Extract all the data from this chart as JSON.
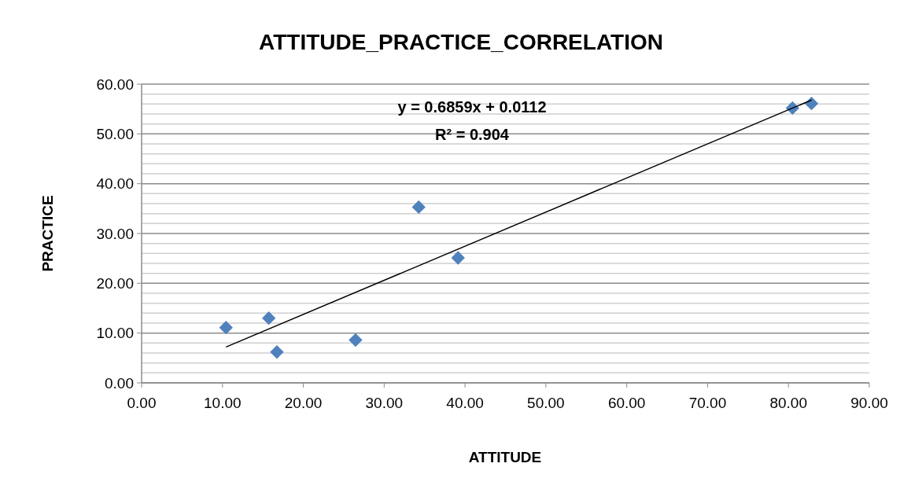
{
  "chart_data": {
    "type": "scatter",
    "title": "ATTITUDE_PRACTICE_CORRELATION",
    "xlabel": "ATTITUDE",
    "ylabel": "PRACTICE",
    "xlim": [
      0,
      90
    ],
    "xticks": [
      {
        "value": 0,
        "label": "0.00"
      },
      {
        "value": 10,
        "label": "10.00"
      },
      {
        "value": 20,
        "label": "20.00"
      },
      {
        "value": 30,
        "label": "30.00"
      },
      {
        "value": 40,
        "label": "40.00"
      },
      {
        "value": 50,
        "label": "50.00"
      },
      {
        "value": 60,
        "label": "60.00"
      },
      {
        "value": 70,
        "label": "70.00"
      },
      {
        "value": 80,
        "label": "80.00"
      },
      {
        "value": 90,
        "label": "90.00"
      }
    ],
    "ylim": [
      0,
      60
    ],
    "yticks": [
      {
        "value": 0,
        "label": "0.00"
      },
      {
        "value": 2,
        "label": null
      },
      {
        "value": 4,
        "label": null
      },
      {
        "value": 6,
        "label": null
      },
      {
        "value": 8,
        "label": null
      },
      {
        "value": 10,
        "label": "10.00"
      },
      {
        "value": 12,
        "label": null
      },
      {
        "value": 14,
        "label": null
      },
      {
        "value": 16,
        "label": null
      },
      {
        "value": 18,
        "label": null
      },
      {
        "value": 20,
        "label": "20.00"
      },
      {
        "value": 22,
        "label": null
      },
      {
        "value": 24,
        "label": null
      },
      {
        "value": 26,
        "label": null
      },
      {
        "value": 28,
        "label": null
      },
      {
        "value": 30,
        "label": "30.00"
      },
      {
        "value": 32,
        "label": null
      },
      {
        "value": 34,
        "label": null
      },
      {
        "value": 36,
        "label": null
      },
      {
        "value": 38,
        "label": null
      },
      {
        "value": 40,
        "label": "40.00"
      },
      {
        "value": 42,
        "label": null
      },
      {
        "value": 44,
        "label": null
      },
      {
        "value": 46,
        "label": null
      },
      {
        "value": 48,
        "label": null
      },
      {
        "value": 50,
        "label": "50.00"
      },
      {
        "value": 52,
        "label": null
      },
      {
        "value": 54,
        "label": null
      },
      {
        "value": 56,
        "label": null
      },
      {
        "value": 58,
        "label": null
      },
      {
        "value": 60,
        "label": "60.00"
      }
    ],
    "grid": "y",
    "marker": "diamond",
    "series": [
      {
        "color": "#4f81bd",
        "x": [
          10.44,
          15.73,
          16.73,
          26.46,
          34.27,
          39.14,
          80.5,
          82.85
        ],
        "values": [
          11.1,
          13.0,
          6.2,
          8.6,
          35.3,
          25.1,
          55.2,
          56.1
        ]
      },
      {
        "type": "line",
        "color": "#000000",
        "marker": "none",
        "x": [
          10.44,
          82.85
        ],
        "values": [
          7.2,
          56.8
        ]
      }
    ],
    "annotations": [
      "y = 0.6859x + 0.0112",
      "R² = 0.904"
    ]
  }
}
